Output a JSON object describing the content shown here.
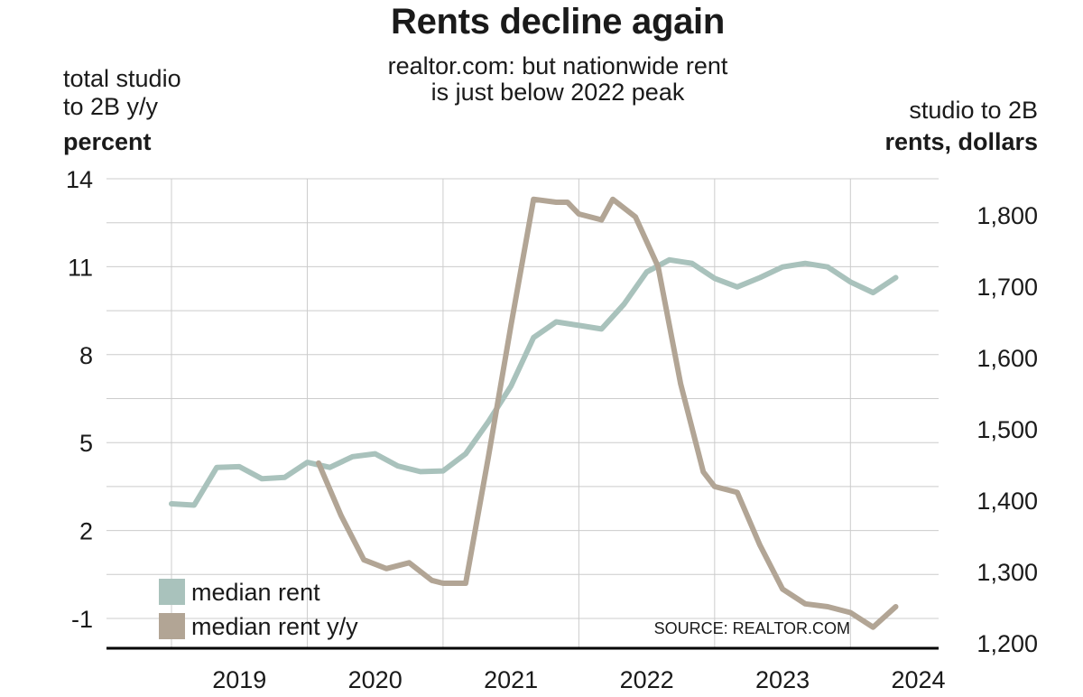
{
  "title": "Rents decline again",
  "subtitle_line1": "realtor.com: but nationwide rent",
  "subtitle_line2": "is just below 2022 peak",
  "left_axis_title": {
    "line1": "total studio",
    "line2": "to 2B y/y",
    "line3": "percent"
  },
  "right_axis_title": {
    "line1": "studio to 2B",
    "line2": "rents, dollars"
  },
  "source": "SOURCE: REALTOR.COM",
  "colors": {
    "median_rent": "#a9c2bc",
    "median_rent_yy": "#b2a595",
    "grid": "#cccccc",
    "axis": "#000000"
  },
  "chart_data": {
    "type": "line",
    "x_axis": {
      "range": [
        "2019-01",
        "2024-06"
      ],
      "ticks": [
        "2019",
        "2020",
        "2021",
        "2022",
        "2023",
        "2024"
      ]
    },
    "y_left": {
      "range": [
        -2,
        14
      ],
      "ticks": [
        "14",
        "11",
        "8",
        "5",
        "2",
        "-1"
      ]
    },
    "y_right": {
      "range": [
        1200,
        1850
      ],
      "ticks": [
        "1,800",
        "1,700",
        "1,600",
        "1,500",
        "1,400",
        "1,300",
        "1,200"
      ]
    },
    "grid": true,
    "legend": "bottom-left",
    "series": [
      {
        "name": "median rent",
        "axis": "right",
        "x": [
          "2019-01",
          "2019-03",
          "2019-05",
          "2019-07",
          "2019-09",
          "2019-11",
          "2020-01",
          "2020-03",
          "2020-05",
          "2020-07",
          "2020-09",
          "2020-11",
          "2021-01",
          "2021-03",
          "2021-05",
          "2021-07",
          "2021-09",
          "2021-11",
          "2022-01",
          "2022-03",
          "2022-05",
          "2022-07",
          "2022-09",
          "2022-11",
          "2023-01",
          "2023-03",
          "2023-05",
          "2023-07",
          "2023-09",
          "2023-11",
          "2024-01",
          "2024-03",
          "2024-05"
        ],
        "values": [
          1395,
          1393,
          1446,
          1447,
          1430,
          1432,
          1453,
          1446,
          1461,
          1465,
          1448,
          1440,
          1441,
          1465,
          1510,
          1560,
          1628,
          1650,
          1645,
          1640,
          1675,
          1720,
          1737,
          1732,
          1711,
          1699,
          1712,
          1727,
          1732,
          1727,
          1706,
          1691,
          1712
        ]
      },
      {
        "name": "median rent y/y",
        "axis": "left",
        "x": [
          "2020-02",
          "2020-04",
          "2020-06",
          "2020-08",
          "2020-10",
          "2020-12",
          "2021-01",
          "2021-03",
          "2021-05",
          "2021-07",
          "2021-09",
          "2021-11",
          "2021-12",
          "2022-01",
          "2022-03",
          "2022-04",
          "2022-06",
          "2022-08",
          "2022-10",
          "2022-12",
          "2023-01",
          "2023-03",
          "2023-05",
          "2023-07",
          "2023-09",
          "2023-11",
          "2024-01",
          "2024-03",
          "2024-05"
        ],
        "values": [
          4.3,
          2.5,
          1.0,
          0.7,
          0.9,
          0.3,
          0.2,
          0.2,
          4.5,
          9.0,
          13.3,
          13.2,
          13.2,
          12.8,
          12.6,
          13.3,
          12.7,
          11.0,
          7.0,
          4.0,
          3.5,
          3.3,
          1.5,
          0.0,
          -0.5,
          -0.6,
          -0.8,
          -1.3,
          -0.6
        ]
      }
    ]
  }
}
